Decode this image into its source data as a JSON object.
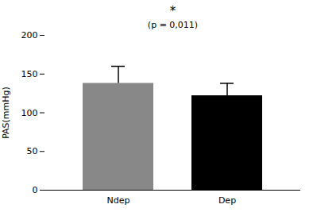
{
  "chart_data": {
    "type": "bar",
    "categories": [
      "Ndep",
      "Dep"
    ],
    "values": [
      138,
      122
    ],
    "errors_upper": [
      22,
      16
    ],
    "errors_lower": [
      0,
      0
    ],
    "colors": [
      "#888888",
      "#000000"
    ],
    "ylabel": "PAS(mmHg)",
    "ylim": [
      0,
      200
    ],
    "yticks": [
      0,
      50,
      100,
      150,
      200
    ],
    "annotations": [
      "*",
      "(p = 0,011)"
    ]
  }
}
